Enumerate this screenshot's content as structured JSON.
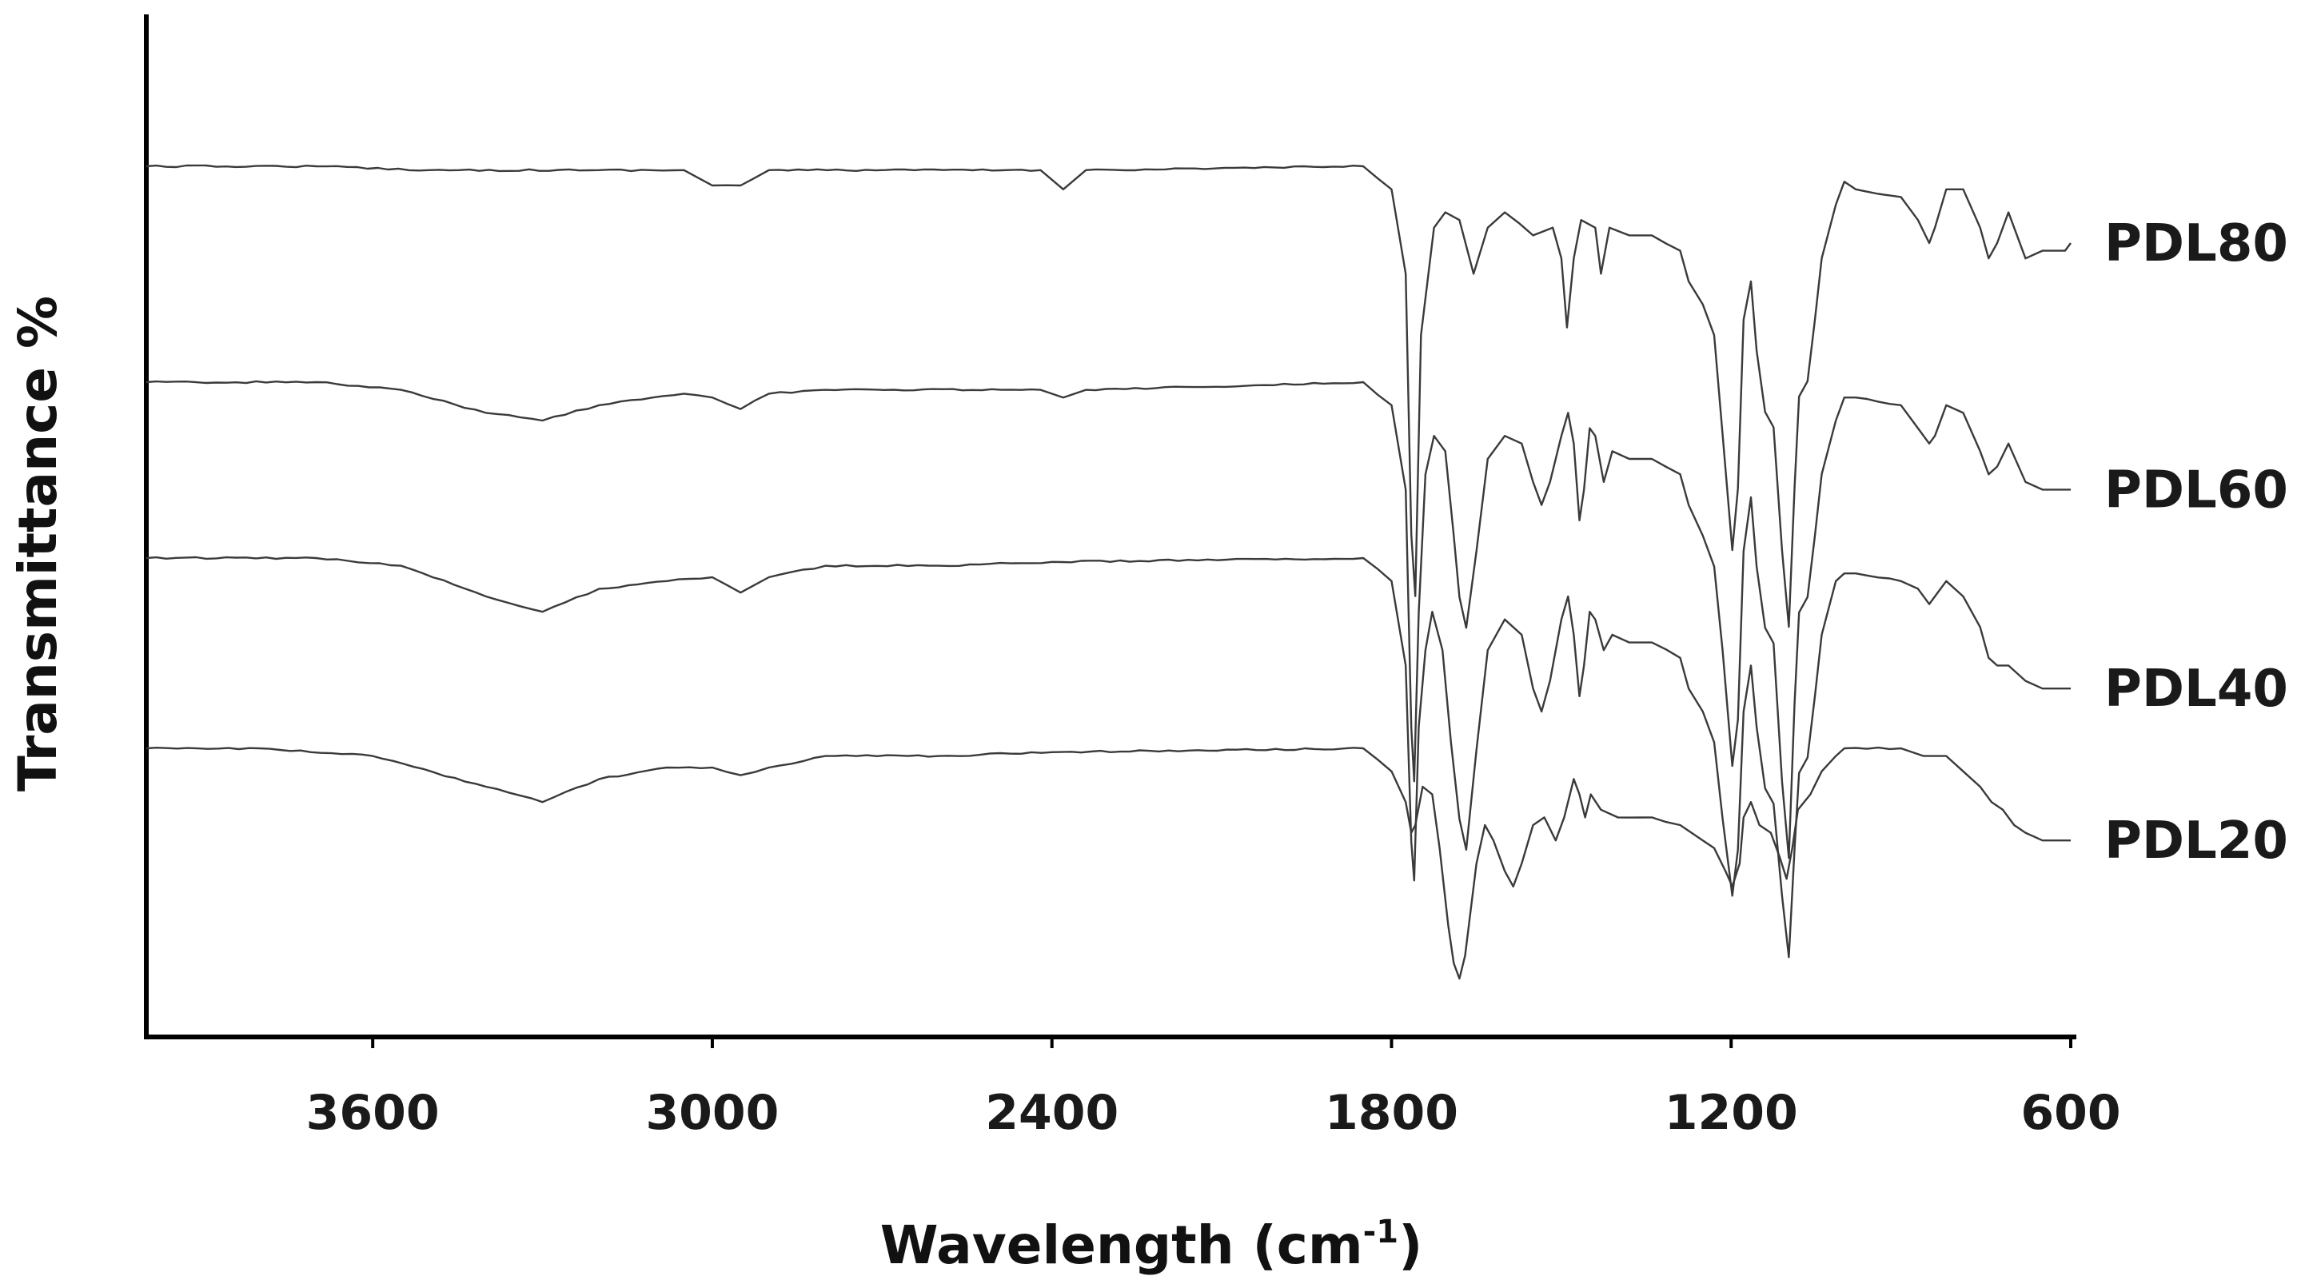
{
  "chart_data": {
    "type": "line",
    "title": "",
    "xlabel": "Wavelength (cm",
    "xlabel_superscript": "-1",
    "xlabel_suffix": ")",
    "ylabel": "Transmittance %",
    "x_range": [
      4000,
      600
    ],
    "x_reversed": true,
    "x_ticks": [
      3600,
      3000,
      2400,
      1800,
      1200,
      600
    ],
    "x_tick_labels": [
      "3600",
      "3000",
      "2400",
      "1800",
      "1200",
      "600"
    ],
    "y_ticks": [],
    "grid": false,
    "legend": "series labels at right end of each trace",
    "line_color": "#3a3a3a",
    "series": [
      {
        "name": "PDL80",
        "baseline": 100,
        "points": [
          [
            4000,
            100
          ],
          [
            3700,
            100
          ],
          [
            3500,
            99.5
          ],
          [
            3200,
            99.5
          ],
          [
            3050,
            99.5
          ],
          [
            3000,
            97.5
          ],
          [
            2950,
            97.5
          ],
          [
            2900,
            99.5
          ],
          [
            2420,
            99.5
          ],
          [
            2380,
            97
          ],
          [
            2340,
            99.5
          ],
          [
            1850,
            100
          ],
          [
            1800,
            97
          ],
          [
            1775,
            86
          ],
          [
            1765,
            52
          ],
          [
            1758,
            44
          ],
          [
            1748,
            78
          ],
          [
            1725,
            92
          ],
          [
            1705,
            94
          ],
          [
            1680,
            93
          ],
          [
            1655,
            86
          ],
          [
            1630,
            92
          ],
          [
            1600,
            94
          ],
          [
            1550,
            91
          ],
          [
            1515,
            92
          ],
          [
            1500,
            88
          ],
          [
            1490,
            79
          ],
          [
            1478,
            88
          ],
          [
            1465,
            93
          ],
          [
            1440,
            92
          ],
          [
            1430,
            86
          ],
          [
            1415,
            92
          ],
          [
            1380,
            91
          ],
          [
            1340,
            91
          ],
          [
            1290,
            89
          ],
          [
            1275,
            85
          ],
          [
            1250,
            82
          ],
          [
            1230,
            78
          ],
          [
            1215,
            65
          ],
          [
            1198,
            50
          ],
          [
            1188,
            58
          ],
          [
            1178,
            80
          ],
          [
            1165,
            85
          ],
          [
            1155,
            76
          ],
          [
            1140,
            68
          ],
          [
            1125,
            66
          ],
          [
            1110,
            50
          ],
          [
            1098,
            40
          ],
          [
            1088,
            58
          ],
          [
            1080,
            70
          ],
          [
            1065,
            72
          ],
          [
            1052,
            80
          ],
          [
            1040,
            88
          ],
          [
            1015,
            95
          ],
          [
            1000,
            98
          ],
          [
            980,
            97
          ],
          [
            900,
            96
          ],
          [
            870,
            93
          ],
          [
            850,
            90
          ],
          [
            840,
            92
          ],
          [
            820,
            97
          ],
          [
            790,
            97
          ],
          [
            760,
            92
          ],
          [
            745,
            88
          ],
          [
            730,
            90
          ],
          [
            710,
            94
          ],
          [
            680,
            88
          ],
          [
            650,
            89
          ],
          [
            610,
            89
          ],
          [
            600,
            90
          ]
        ]
      },
      {
        "name": "PDL60",
        "baseline": 100,
        "points": [
          [
            4000,
            100
          ],
          [
            3700,
            100
          ],
          [
            3550,
            99
          ],
          [
            3400,
            96
          ],
          [
            3300,
            95
          ],
          [
            3200,
            97
          ],
          [
            3050,
            98.5
          ],
          [
            3000,
            98
          ],
          [
            2950,
            96.5
          ],
          [
            2900,
            98.5
          ],
          [
            2800,
            99
          ],
          [
            2420,
            99
          ],
          [
            2380,
            98
          ],
          [
            2340,
            99
          ],
          [
            1850,
            100
          ],
          [
            1800,
            97
          ],
          [
            1775,
            86
          ],
          [
            1765,
            55
          ],
          [
            1760,
            48
          ],
          [
            1752,
            70
          ],
          [
            1740,
            88
          ],
          [
            1725,
            93
          ],
          [
            1705,
            91
          ],
          [
            1690,
            80
          ],
          [
            1680,
            72
          ],
          [
            1668,
            68
          ],
          [
            1650,
            78
          ],
          [
            1630,
            90
          ],
          [
            1600,
            93
          ],
          [
            1570,
            92
          ],
          [
            1550,
            87
          ],
          [
            1535,
            84
          ],
          [
            1520,
            87
          ],
          [
            1500,
            93
          ],
          [
            1488,
            96
          ],
          [
            1478,
            92
          ],
          [
            1468,
            82
          ],
          [
            1460,
            86
          ],
          [
            1450,
            94
          ],
          [
            1440,
            93
          ],
          [
            1425,
            87
          ],
          [
            1410,
            91
          ],
          [
            1380,
            90
          ],
          [
            1340,
            90
          ],
          [
            1290,
            88
          ],
          [
            1275,
            84
          ],
          [
            1250,
            80
          ],
          [
            1230,
            76
          ],
          [
            1215,
            65
          ],
          [
            1198,
            50
          ],
          [
            1188,
            56
          ],
          [
            1178,
            78
          ],
          [
            1165,
            85
          ],
          [
            1155,
            76
          ],
          [
            1140,
            68
          ],
          [
            1125,
            66
          ],
          [
            1110,
            48
          ],
          [
            1098,
            38
          ],
          [
            1088,
            58
          ],
          [
            1080,
            70
          ],
          [
            1065,
            72
          ],
          [
            1052,
            80
          ],
          [
            1040,
            88
          ],
          [
            1015,
            95
          ],
          [
            1000,
            98
          ],
          [
            980,
            98
          ],
          [
            900,
            97
          ],
          [
            870,
            94
          ],
          [
            850,
            92
          ],
          [
            840,
            93
          ],
          [
            820,
            97
          ],
          [
            790,
            96
          ],
          [
            760,
            91
          ],
          [
            745,
            88
          ],
          [
            730,
            89
          ],
          [
            710,
            92
          ],
          [
            680,
            87
          ],
          [
            650,
            86
          ],
          [
            610,
            86
          ],
          [
            600,
            86
          ]
        ]
      },
      {
        "name": "PDL40",
        "baseline": 100,
        "points": [
          [
            4000,
            100
          ],
          [
            3700,
            100
          ],
          [
            3550,
            99
          ],
          [
            3400,
            95
          ],
          [
            3300,
            93
          ],
          [
            3200,
            96
          ],
          [
            3080,
            97
          ],
          [
            3000,
            97.5
          ],
          [
            2950,
            95.5
          ],
          [
            2900,
            97.5
          ],
          [
            2800,
            99
          ],
          [
            2600,
            99
          ],
          [
            2400,
            99.5
          ],
          [
            1850,
            100
          ],
          [
            1800,
            97
          ],
          [
            1775,
            86
          ],
          [
            1765,
            63
          ],
          [
            1760,
            58
          ],
          [
            1752,
            78
          ],
          [
            1740,
            88
          ],
          [
            1728,
            93
          ],
          [
            1710,
            88
          ],
          [
            1695,
            76
          ],
          [
            1680,
            66
          ],
          [
            1668,
            62
          ],
          [
            1650,
            75
          ],
          [
            1630,
            88
          ],
          [
            1600,
            92
          ],
          [
            1570,
            90
          ],
          [
            1550,
            83
          ],
          [
            1535,
            80
          ],
          [
            1520,
            84
          ],
          [
            1500,
            92
          ],
          [
            1488,
            95
          ],
          [
            1478,
            90
          ],
          [
            1468,
            82
          ],
          [
            1460,
            86
          ],
          [
            1450,
            93
          ],
          [
            1440,
            92
          ],
          [
            1425,
            88
          ],
          [
            1410,
            90
          ],
          [
            1380,
            89
          ],
          [
            1340,
            89
          ],
          [
            1290,
            87
          ],
          [
            1275,
            83
          ],
          [
            1250,
            80
          ],
          [
            1230,
            76
          ],
          [
            1215,
            66
          ],
          [
            1198,
            56
          ],
          [
            1188,
            62
          ],
          [
            1178,
            80
          ],
          [
            1165,
            86
          ],
          [
            1155,
            78
          ],
          [
            1140,
            70
          ],
          [
            1125,
            68
          ],
          [
            1110,
            56
          ],
          [
            1098,
            48
          ],
          [
            1088,
            62
          ],
          [
            1080,
            72
          ],
          [
            1065,
            74
          ],
          [
            1052,
            82
          ],
          [
            1040,
            90
          ],
          [
            1015,
            97
          ],
          [
            1000,
            98
          ],
          [
            980,
            98
          ],
          [
            900,
            97
          ],
          [
            870,
            96
          ],
          [
            850,
            94
          ],
          [
            840,
            95
          ],
          [
            820,
            97
          ],
          [
            790,
            95
          ],
          [
            760,
            91
          ],
          [
            745,
            87
          ],
          [
            730,
            86
          ],
          [
            710,
            86
          ],
          [
            680,
            84
          ],
          [
            650,
            83
          ],
          [
            610,
            83
          ],
          [
            600,
            83
          ]
        ]
      },
      {
        "name": "PDL20",
        "baseline": 100,
        "points": [
          [
            4000,
            100
          ],
          [
            3800,
            100
          ],
          [
            3600,
            99
          ],
          [
            3400,
            95
          ],
          [
            3300,
            93
          ],
          [
            3200,
            96
          ],
          [
            3080,
            97.5
          ],
          [
            3000,
            97.5
          ],
          [
            2950,
            96.5
          ],
          [
            2900,
            97.5
          ],
          [
            2800,
            99
          ],
          [
            2600,
            99
          ],
          [
            2400,
            99.5
          ],
          [
            1850,
            100
          ],
          [
            1800,
            97
          ],
          [
            1775,
            93
          ],
          [
            1765,
            89
          ],
          [
            1758,
            90
          ],
          [
            1745,
            95
          ],
          [
            1728,
            94
          ],
          [
            1715,
            87
          ],
          [
            1700,
            77
          ],
          [
            1690,
            72
          ],
          [
            1680,
            70
          ],
          [
            1670,
            73
          ],
          [
            1650,
            85
          ],
          [
            1635,
            90
          ],
          [
            1620,
            88
          ],
          [
            1600,
            84
          ],
          [
            1585,
            82
          ],
          [
            1570,
            85
          ],
          [
            1550,
            90
          ],
          [
            1530,
            91
          ],
          [
            1510,
            88
          ],
          [
            1495,
            91
          ],
          [
            1478,
            96
          ],
          [
            1468,
            94
          ],
          [
            1458,
            91
          ],
          [
            1448,
            94
          ],
          [
            1430,
            92
          ],
          [
            1400,
            91
          ],
          [
            1340,
            91
          ],
          [
            1290,
            90
          ],
          [
            1250,
            88
          ],
          [
            1230,
            87
          ],
          [
            1210,
            84
          ],
          [
            1198,
            82
          ],
          [
            1185,
            85
          ],
          [
            1178,
            91
          ],
          [
            1165,
            93
          ],
          [
            1150,
            90
          ],
          [
            1130,
            89
          ],
          [
            1115,
            86
          ],
          [
            1102,
            83
          ],
          [
            1092,
            87
          ],
          [
            1082,
            92
          ],
          [
            1060,
            94
          ],
          [
            1040,
            97
          ],
          [
            1015,
            99
          ],
          [
            1000,
            100
          ],
          [
            900,
            100
          ],
          [
            860,
            99
          ],
          [
            820,
            99
          ],
          [
            790,
            97
          ],
          [
            760,
            95
          ],
          [
            740,
            93
          ],
          [
            720,
            92
          ],
          [
            700,
            90
          ],
          [
            680,
            89
          ],
          [
            650,
            88
          ],
          [
            610,
            88
          ],
          [
            600,
            88
          ]
        ]
      }
    ]
  }
}
